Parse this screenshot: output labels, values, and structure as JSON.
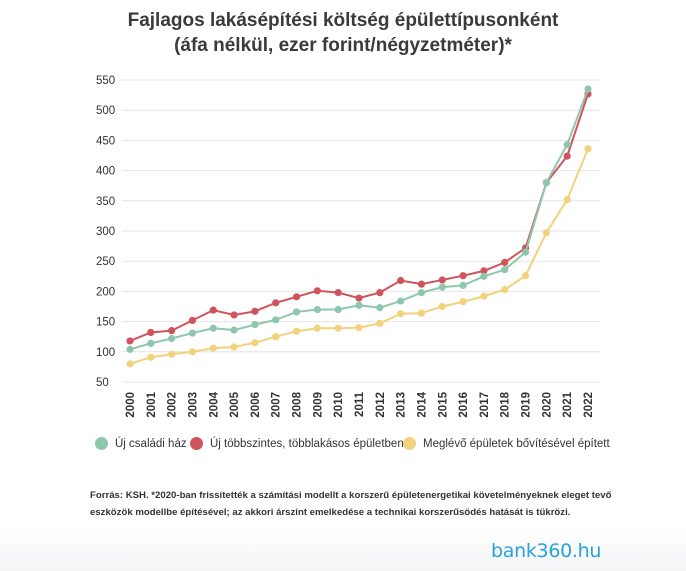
{
  "title": {
    "line1": "Fajlagos lakásépítési költség épülettípusonként",
    "line2": "(áfa nélkül, ezer forint/négyzetméter)*"
  },
  "legend": [
    {
      "label": "Új családi ház",
      "color": "#8fc7ad"
    },
    {
      "label": "Új többszintes, többlakásos épületben",
      "color": "#d0545c"
    },
    {
      "label": "Meglévő épületek bővítésével épített",
      "color": "#f2d27c"
    }
  ],
  "note": "Forrás: KSH. *2020-ban frissítették a számítási modellt a korszerű épületenergetikai követelményeknek eleget tevő eszközök modellbe építésével; az akkori árszint emelkedése a technikai korszerűsödés hatását is tükrözi.",
  "logo": "bank360.hu",
  "chart_data": {
    "type": "line",
    "x": [
      "2000",
      "2001",
      "2002",
      "2003",
      "2004",
      "2005",
      "2006",
      "2007",
      "2008",
      "2009",
      "2010",
      "2011",
      "2012",
      "2013",
      "2014",
      "2015",
      "2016",
      "2017",
      "2018",
      "2019",
      "2020",
      "2021",
      "2022"
    ],
    "ylim": [
      50,
      550
    ],
    "yticks": [
      50,
      100,
      150,
      200,
      250,
      300,
      350,
      400,
      450,
      500,
      550
    ],
    "grid": true,
    "legend_position": "bottom",
    "series": [
      {
        "name": "Új családi ház",
        "color": "#8fc7ad",
        "values": [
          104,
          114,
          122,
          131,
          139,
          136,
          145,
          153,
          166,
          170,
          170,
          177,
          173,
          184,
          198,
          207,
          210,
          225,
          236,
          265,
          380,
          443,
          535
        ]
      },
      {
        "name": "Új többszintes, többlakásos épületben",
        "color": "#d0545c",
        "values": [
          118,
          132,
          135,
          152,
          169,
          161,
          167,
          181,
          191,
          201,
          198,
          189,
          198,
          218,
          212,
          219,
          226,
          234,
          248,
          272,
          380,
          424,
          527
        ]
      },
      {
        "name": "Meglévő épületek bővítésével épített",
        "color": "#f2d27c",
        "values": [
          80,
          91,
          96,
          100,
          106,
          108,
          115,
          125,
          134,
          139,
          139,
          140,
          147,
          163,
          164,
          175,
          183,
          192,
          203,
          226,
          297,
          352,
          436
        ]
      }
    ]
  }
}
